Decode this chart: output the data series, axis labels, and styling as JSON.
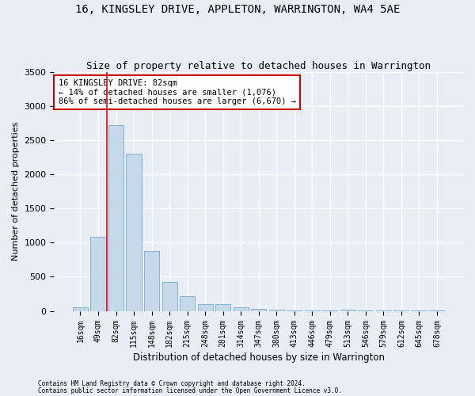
{
  "title": "16, KINGSLEY DRIVE, APPLETON, WARRINGTON, WA4 5AE",
  "subtitle": "Size of property relative to detached houses in Warrington",
  "xlabel": "Distribution of detached houses by size in Warrington",
  "ylabel": "Number of detached properties",
  "bin_labels": [
    "16sqm",
    "49sqm",
    "82sqm",
    "115sqm",
    "148sqm",
    "182sqm",
    "215sqm",
    "248sqm",
    "281sqm",
    "314sqm",
    "347sqm",
    "380sqm",
    "413sqm",
    "446sqm",
    "479sqm",
    "513sqm",
    "546sqm",
    "579sqm",
    "612sqm",
    "645sqm",
    "678sqm"
  ],
  "bar_values": [
    50,
    1080,
    2720,
    2300,
    880,
    420,
    210,
    100,
    100,
    55,
    30,
    20,
    5,
    5,
    5,
    20,
    5,
    5,
    5,
    5,
    5
  ],
  "bar_color": "#c5d8ea",
  "bar_edge_color": "#7aaac8",
  "red_line_index": 2,
  "annotation_text": "16 KINGSLEY DRIVE: 82sqm\n← 14% of detached houses are smaller (1,076)\n86% of semi-detached houses are larger (6,670) →",
  "annotation_box_color": "white",
  "annotation_box_edge": "#cc0000",
  "ylim": [
    0,
    3500
  ],
  "yticks": [
    0,
    500,
    1000,
    1500,
    2000,
    2500,
    3000,
    3500
  ],
  "footer1": "Contains HM Land Registry data © Crown copyright and database right 2024.",
  "footer2": "Contains public sector information licensed under the Open Government Licence v3.0.",
  "bg_color": "#e8eef4",
  "plot_bg_color": "#e8eef4",
  "title_fontsize": 10,
  "subtitle_fontsize": 9,
  "tick_fontsize": 7,
  "ylabel_fontsize": 8,
  "xlabel_fontsize": 8.5,
  "footer_fontsize": 5.5,
  "annotation_fontsize": 7.5
}
